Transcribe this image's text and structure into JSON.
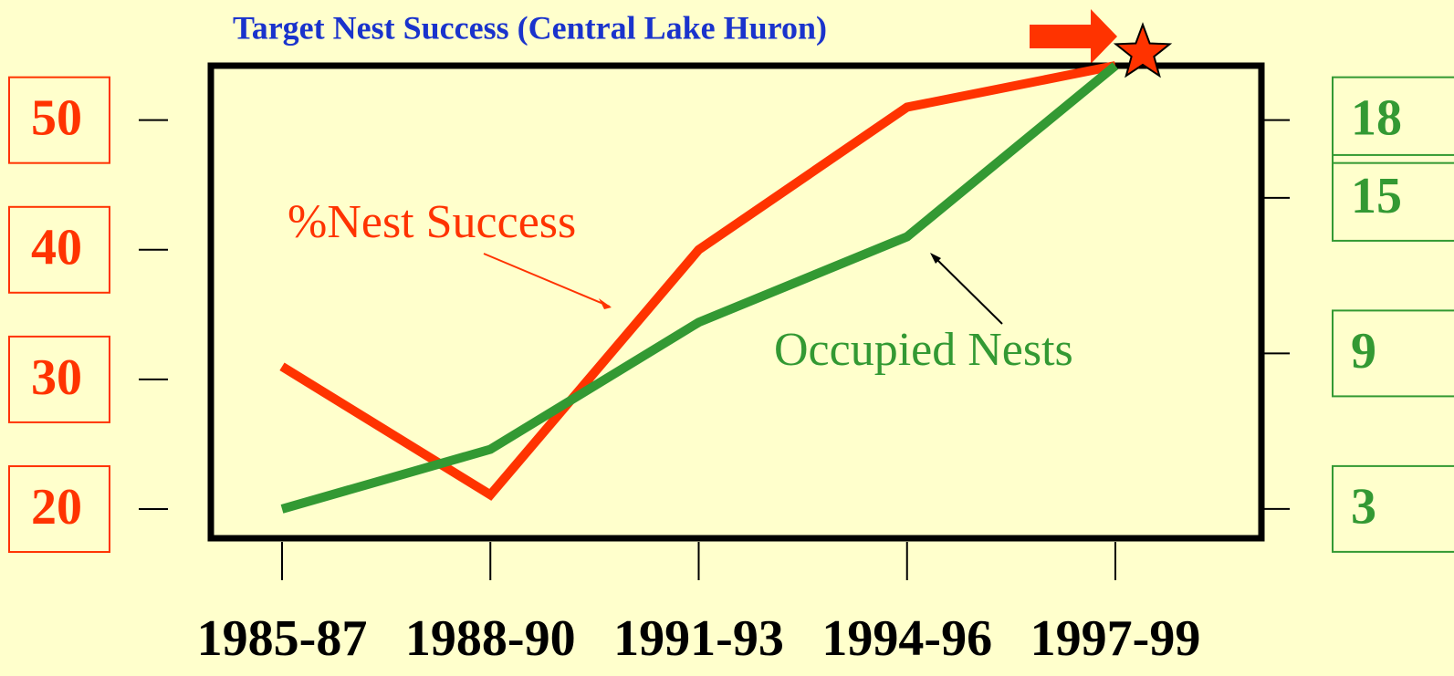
{
  "chart_data": {
    "type": "line",
    "annotations": {
      "target": "Target Nest Success (Central Lake Huron)"
    },
    "categories": [
      "1985-87",
      "1988-90",
      "1991-93",
      "1994-96",
      "1997-99"
    ],
    "series": [
      {
        "name": "%Nest Success",
        "color": "#ff3300",
        "values": [
          31,
          21.1,
          40,
          51,
          54.2
        ]
      },
      {
        "name": "Occupied Nests",
        "color": "#339933",
        "axis": "y2",
        "values": [
          3,
          5.3,
          10.2,
          13.5,
          20.1
        ]
      }
    ],
    "ylim": [
      17.75,
      54.2
    ],
    "yticks": [
      20,
      30,
      40,
      50
    ],
    "y2lim": [
      1.87,
      20.1
    ],
    "y2ticks": [
      3,
      9,
      15,
      18
    ]
  }
}
